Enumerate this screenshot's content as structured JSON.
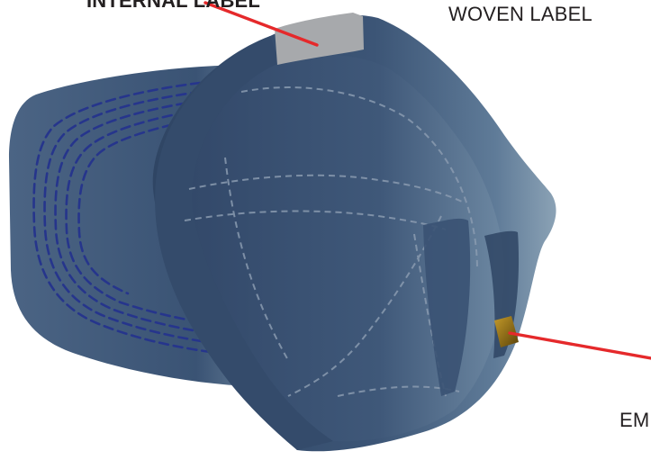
{
  "labels": {
    "internal_label": "INTERNAL LABEL",
    "woven_label": "WOVEN LABEL",
    "cutoff_label": "EM"
  },
  "colors": {
    "background": "#ffffff",
    "cap_dark": "#2f4564",
    "cap_mid": "#3d5677",
    "cap_light": "#7f97ab",
    "stitch": "#26358c",
    "seam": "#8a9bb0",
    "internal_label_patch": "#a7a9ac",
    "woven_label_patch": "#8a6a16",
    "pointer_line": "#e5292b",
    "text": "#231f20"
  },
  "icons": {
    "cap": "cap-underside-illustration",
    "internal_label_patch": "grey-label-patch",
    "woven_label_patch": "gold-label-patch"
  }
}
